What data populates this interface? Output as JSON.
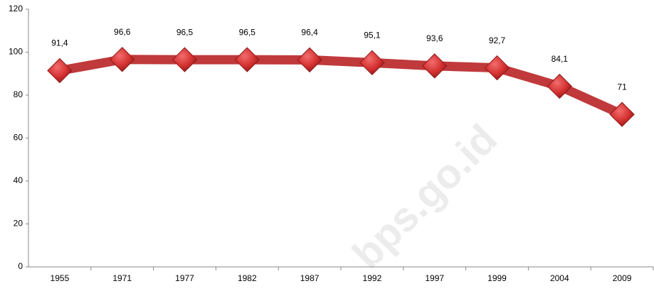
{
  "chart_data": {
    "type": "line",
    "categories": [
      "1955",
      "1971",
      "1977",
      "1982",
      "1987",
      "1992",
      "1997",
      "1999",
      "2004",
      "2009"
    ],
    "values": [
      91.4,
      96.6,
      96.5,
      96.5,
      96.4,
      95.1,
      93.6,
      92.7,
      84.1,
      71
    ],
    "value_labels": [
      "91,4",
      "96,6",
      "96,5",
      "96,5",
      "96,4",
      "95,1",
      "93,6",
      "92,7",
      "84,1",
      "71"
    ],
    "color": "#c0393b",
    "ylim": [
      0,
      120
    ],
    "yticks": [
      0,
      20,
      40,
      60,
      80,
      100,
      120
    ],
    "grid": false,
    "watermark": "bps.go.id"
  }
}
